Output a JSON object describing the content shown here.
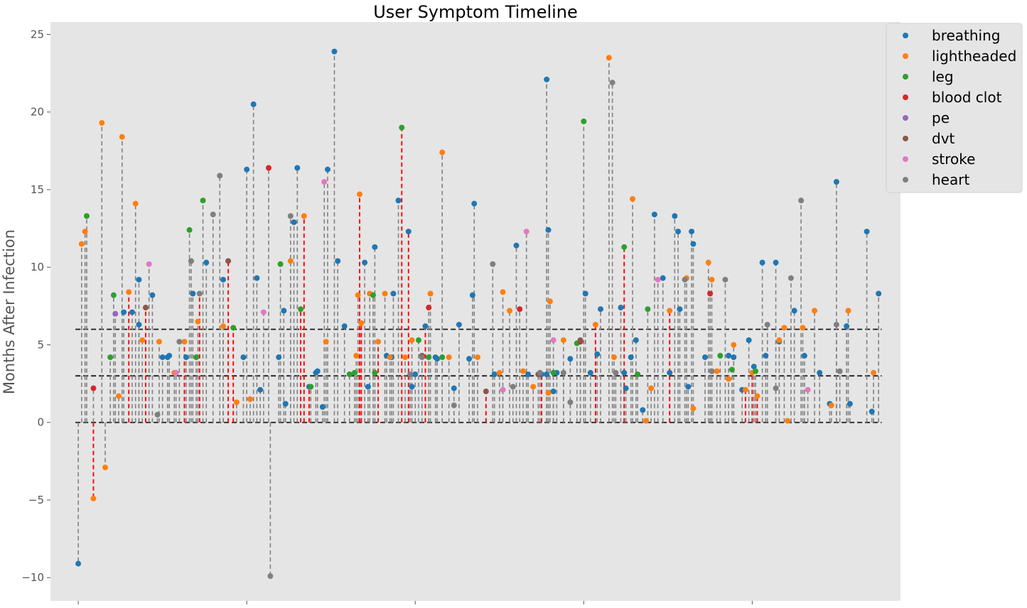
{
  "chart_data": {
    "type": "scatter",
    "title": "User Symptom Timeline",
    "xlabel": "",
    "ylabel": "Months After Infection",
    "ylim": [
      -11.5,
      25.8
    ],
    "yticks": [
      -10,
      -5,
      0,
      5,
      10,
      15,
      20,
      25
    ],
    "ytick_labels": [
      "−10",
      "−5",
      "0",
      "5",
      "10",
      "15",
      "20",
      "25"
    ],
    "xlim": [
      -16.5,
      488
    ],
    "xticks": [
      0,
      100,
      200,
      300,
      400
    ],
    "xtick_labels": [
      "",
      "",
      "",
      "",
      ""
    ],
    "grid": false,
    "legend": "top-right",
    "reference_lines": [
      0,
      3,
      6
    ],
    "colors": {
      "breathing": "#1f77b4",
      "lightheaded": "#ff7f0e",
      "leg": "#2ca02c",
      "blood clot": "#d62728",
      "pe": "#9467bd",
      "dvt": "#8c564b",
      "stroke": "#e377c2",
      "heart": "#7f7f7f",
      "stem": "#808080",
      "stem_highlight": "#ff0000",
      "background": "#e5e5e5"
    },
    "series": [
      {
        "name": "breathing",
        "points": [
          [
            0,
            -9.1
          ],
          [
            27,
            7.1
          ],
          [
            32,
            7.1
          ],
          [
            36,
            9.2
          ],
          [
            36,
            6.3
          ],
          [
            44,
            8.2
          ],
          [
            50,
            4.2
          ],
          [
            53,
            4.2
          ],
          [
            54,
            4.3
          ],
          [
            64,
            4.2
          ],
          [
            68,
            8.3
          ],
          [
            76,
            10.3
          ],
          [
            86,
            9.2
          ],
          [
            98,
            4.2
          ],
          [
            100,
            16.3
          ],
          [
            104,
            20.5
          ],
          [
            106,
            9.3
          ],
          [
            108,
            2.1
          ],
          [
            119,
            4.2
          ],
          [
            122,
            7.2
          ],
          [
            123,
            1.2
          ],
          [
            128,
            12.9
          ],
          [
            130,
            16.4
          ],
          [
            137,
            2.3
          ],
          [
            141,
            3.2
          ],
          [
            142,
            3.3
          ],
          [
            145,
            1.0
          ],
          [
            148,
            16.3
          ],
          [
            152,
            23.9
          ],
          [
            154,
            10.4
          ],
          [
            158,
            6.2
          ],
          [
            170,
            10.3
          ],
          [
            172,
            2.3
          ],
          [
            176,
            11.3
          ],
          [
            183,
            4.3
          ],
          [
            186,
            4.2
          ],
          [
            187,
            8.3
          ],
          [
            190,
            14.3
          ],
          [
            196,
            12.3
          ],
          [
            198,
            2.3
          ],
          [
            200,
            3.1
          ],
          [
            206,
            6.2
          ],
          [
            212,
            4.2
          ],
          [
            213,
            4.1
          ],
          [
            223,
            2.2
          ],
          [
            226,
            6.3
          ],
          [
            232,
            4.1
          ],
          [
            234,
            8.2
          ],
          [
            235,
            14.1
          ],
          [
            247,
            3.1
          ],
          [
            260,
            11.4
          ],
          [
            267,
            3.1
          ],
          [
            275,
            3.1
          ],
          [
            278,
            3.1
          ],
          [
            278,
            22.1
          ],
          [
            279,
            12.4
          ],
          [
            282,
            2.0
          ],
          [
            284,
            3.2
          ],
          [
            292,
            4.1
          ],
          [
            301,
            8.3
          ],
          [
            304,
            3.2
          ],
          [
            308,
            4.4
          ],
          [
            310,
            7.3
          ],
          [
            322,
            7.4
          ],
          [
            324,
            3.2
          ],
          [
            325,
            2.2
          ],
          [
            328,
            4.2
          ],
          [
            331,
            5.3
          ],
          [
            335,
            0.8
          ],
          [
            342,
            13.4
          ],
          [
            347,
            9.3
          ],
          [
            351,
            3.2
          ],
          [
            354,
            13.3
          ],
          [
            356,
            12.3
          ],
          [
            357,
            7.3
          ],
          [
            362,
            2.3
          ],
          [
            364,
            12.3
          ],
          [
            365,
            11.5
          ],
          [
            372,
            4.2
          ],
          [
            386,
            4.3
          ],
          [
            389,
            4.2
          ],
          [
            394,
            2.1
          ],
          [
            398,
            5.3
          ],
          [
            401,
            3.6
          ],
          [
            406,
            10.3
          ],
          [
            408,
            4.3
          ],
          [
            414,
            10.3
          ],
          [
            416,
            5.2
          ],
          [
            425,
            7.2
          ],
          [
            431,
            4.3
          ],
          [
            440,
            3.2
          ],
          [
            450,
            15.5
          ],
          [
            446,
            1.2
          ],
          [
            456,
            6.2
          ],
          [
            458,
            1.2
          ],
          [
            468,
            12.3
          ],
          [
            471,
            0.7
          ],
          [
            475,
            8.3
          ]
        ]
      },
      {
        "name": "lightheaded",
        "points": [
          [
            2,
            11.5
          ],
          [
            4,
            12.3
          ],
          [
            9,
            -4.9
          ],
          [
            14,
            19.3
          ],
          [
            16,
            -2.9
          ],
          [
            24,
            1.7
          ],
          [
            26,
            18.4
          ],
          [
            30,
            8.4
          ],
          [
            34,
            14.1
          ],
          [
            38,
            5.3
          ],
          [
            48,
            5.2
          ],
          [
            57,
            3.2
          ],
          [
            63,
            5.2
          ],
          [
            71,
            6.5
          ],
          [
            86,
            6.2
          ],
          [
            94,
            1.3
          ],
          [
            102,
            1.5
          ],
          [
            126,
            10.4
          ],
          [
            134,
            13.3
          ],
          [
            147,
            5.2
          ],
          [
            165,
            4.3
          ],
          [
            166,
            8.2
          ],
          [
            167,
            14.7
          ],
          [
            168,
            6.4
          ],
          [
            173,
            8.3
          ],
          [
            178,
            5.2
          ],
          [
            182,
            8.3
          ],
          [
            185,
            4.2
          ],
          [
            194,
            4.2
          ],
          [
            198,
            5.3
          ],
          [
            209,
            8.3
          ],
          [
            216,
            17.4
          ],
          [
            220,
            4.2
          ],
          [
            237,
            4.2
          ],
          [
            250,
            3.2
          ],
          [
            252,
            8.4
          ],
          [
            256,
            7.2
          ],
          [
            264,
            3.3
          ],
          [
            270,
            2.3
          ],
          [
            279,
            1.9
          ],
          [
            288,
            5.3
          ],
          [
            280,
            7.8
          ],
          [
            307,
            6.3
          ],
          [
            318,
            4.2
          ],
          [
            329,
            14.4
          ],
          [
            337,
            0.1
          ],
          [
            340,
            2.2
          ],
          [
            351,
            7.2
          ],
          [
            361,
            9.3
          ],
          [
            365,
            0.9
          ],
          [
            374,
            10.3
          ],
          [
            376,
            9.2
          ],
          [
            379,
            3.3
          ],
          [
            386,
            2.8
          ],
          [
            389,
            5.0
          ],
          [
            396,
            2.1
          ],
          [
            400,
            3.2
          ],
          [
            403,
            1.7
          ],
          [
            416,
            5.3
          ],
          [
            419,
            6.1
          ],
          [
            421,
            0.1
          ],
          [
            430,
            6.1
          ],
          [
            437,
            7.2
          ],
          [
            447,
            1.1
          ],
          [
            457,
            7.2
          ],
          [
            472,
            3.2
          ],
          [
            315,
            23.5
          ]
        ]
      },
      {
        "name": "leg",
        "points": [
          [
            5,
            13.3
          ],
          [
            19,
            4.2
          ],
          [
            21,
            8.2
          ],
          [
            66,
            12.4
          ],
          [
            70,
            4.2
          ],
          [
            74,
            14.3
          ],
          [
            92,
            6.1
          ],
          [
            120,
            10.2
          ],
          [
            132,
            7.3
          ],
          [
            138,
            2.3
          ],
          [
            161,
            3.1
          ],
          [
            164,
            3.2
          ],
          [
            175,
            8.2
          ],
          [
            176,
            3.2
          ],
          [
            192,
            19.0
          ],
          [
            202,
            5.3
          ],
          [
            208,
            4.2
          ],
          [
            216,
            4.2
          ],
          [
            282,
            3.2
          ],
          [
            296,
            5.1
          ],
          [
            300,
            19.4
          ],
          [
            324,
            11.3
          ],
          [
            332,
            3.1
          ],
          [
            338,
            7.3
          ],
          [
            381,
            4.3
          ],
          [
            388,
            3.4
          ],
          [
            402,
            3.3
          ]
        ]
      },
      {
        "name": "blood clot",
        "points": [
          [
            9,
            2.2
          ],
          [
            113,
            16.4
          ],
          [
            208,
            7.4
          ],
          [
            262,
            7.3
          ],
          [
            298,
            5.2
          ],
          [
            375,
            8.3
          ]
        ]
      },
      {
        "name": "pe",
        "points": [
          [
            22,
            7.0
          ]
        ]
      },
      {
        "name": "dvt",
        "points": [
          [
            40,
            7.4
          ],
          [
            89,
            10.4
          ],
          [
            204,
            4.3
          ],
          [
            242,
            2.0
          ],
          [
            273,
            3.1
          ],
          [
            298,
            5.3
          ]
        ]
      },
      {
        "name": "stroke",
        "points": [
          [
            42,
            10.2
          ],
          [
            58,
            3.2
          ],
          [
            110,
            7.1
          ],
          [
            146,
            15.5
          ],
          [
            252,
            2.1
          ],
          [
            266,
            12.3
          ],
          [
            282,
            5.3
          ],
          [
            344,
            9.2
          ],
          [
            433,
            2.1
          ]
        ]
      },
      {
        "name": "heart",
        "points": [
          [
            47,
            0.5
          ],
          [
            60,
            5.2
          ],
          [
            67,
            10.4
          ],
          [
            72,
            8.3
          ],
          [
            80,
            13.4
          ],
          [
            84,
            15.9
          ],
          [
            114,
            -9.9
          ],
          [
            126,
            13.3
          ],
          [
            197,
            3.1
          ],
          [
            204,
            4.2
          ],
          [
            223,
            1.1
          ],
          [
            246,
            10.2
          ],
          [
            258,
            2.3
          ],
          [
            274,
            3.2
          ],
          [
            288,
            3.2
          ],
          [
            292,
            1.3
          ],
          [
            317,
            21.9
          ],
          [
            319,
            3.2
          ],
          [
            360,
            9.2
          ],
          [
            376,
            3.3
          ],
          [
            384,
            9.2
          ],
          [
            409,
            6.3
          ],
          [
            414,
            2.2
          ],
          [
            423,
            9.3
          ],
          [
            429,
            14.3
          ],
          [
            450,
            6.3
          ],
          [
            452,
            3.3
          ]
        ]
      }
    ],
    "highlighted_stems": [
      [
        9,
        -4.9
      ],
      [
        30,
        8.4
      ],
      [
        40,
        7.4
      ],
      [
        63,
        5.2
      ],
      [
        72,
        8.3
      ],
      [
        89,
        10.4
      ],
      [
        92,
        6.1
      ],
      [
        132,
        7.3
      ],
      [
        134,
        13.3
      ],
      [
        137,
        2.3
      ],
      [
        167,
        14.7
      ],
      [
        168,
        6.4
      ],
      [
        178,
        5.2
      ],
      [
        192,
        19.0
      ],
      [
        196,
        12.3
      ],
      [
        206,
        6.2
      ],
      [
        242,
        2.0
      ],
      [
        269,
        5.3
      ],
      [
        275,
        3.1
      ],
      [
        307,
        6.3
      ],
      [
        324,
        11.3
      ],
      [
        351,
        7.2
      ],
      [
        381,
        5.3
      ],
      [
        396,
        2.1
      ],
      [
        400,
        3.2
      ],
      [
        403,
        1.7
      ]
    ]
  }
}
